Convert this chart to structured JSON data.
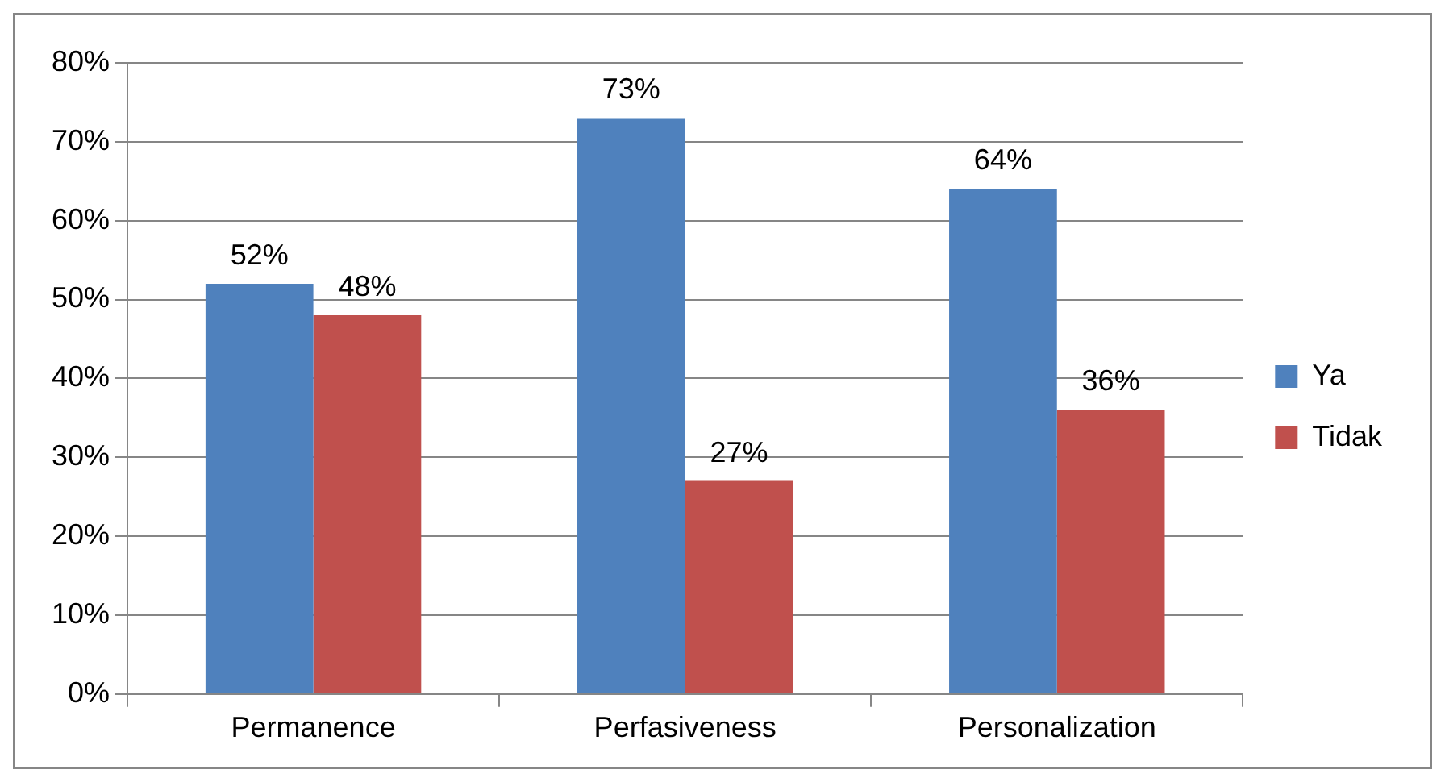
{
  "chart_data": {
    "type": "bar",
    "categories": [
      "Permanence",
      "Perfasiveness",
      "Personalization"
    ],
    "series": [
      {
        "name": "Ya",
        "color": "#4f81bd",
        "values": [
          52,
          73,
          64
        ],
        "value_labels": [
          "52%",
          "73%",
          "64%"
        ]
      },
      {
        "name": "Tidak",
        "color": "#c0504d",
        "values": [
          48,
          27,
          36
        ],
        "value_labels": [
          "48%",
          "27%",
          "36%"
        ]
      }
    ],
    "ylim": [
      0,
      80
    ],
    "yticks": [
      {
        "value": 0,
        "label": "0%"
      },
      {
        "value": 10,
        "label": "10%"
      },
      {
        "value": 20,
        "label": "20%"
      },
      {
        "value": 30,
        "label": "30%"
      },
      {
        "value": 40,
        "label": "40%"
      },
      {
        "value": 50,
        "label": "50%"
      },
      {
        "value": 60,
        "label": "60%"
      },
      {
        "value": 70,
        "label": "70%"
      },
      {
        "value": 80,
        "label": "80%"
      }
    ],
    "grid": "y",
    "legend": "right"
  }
}
